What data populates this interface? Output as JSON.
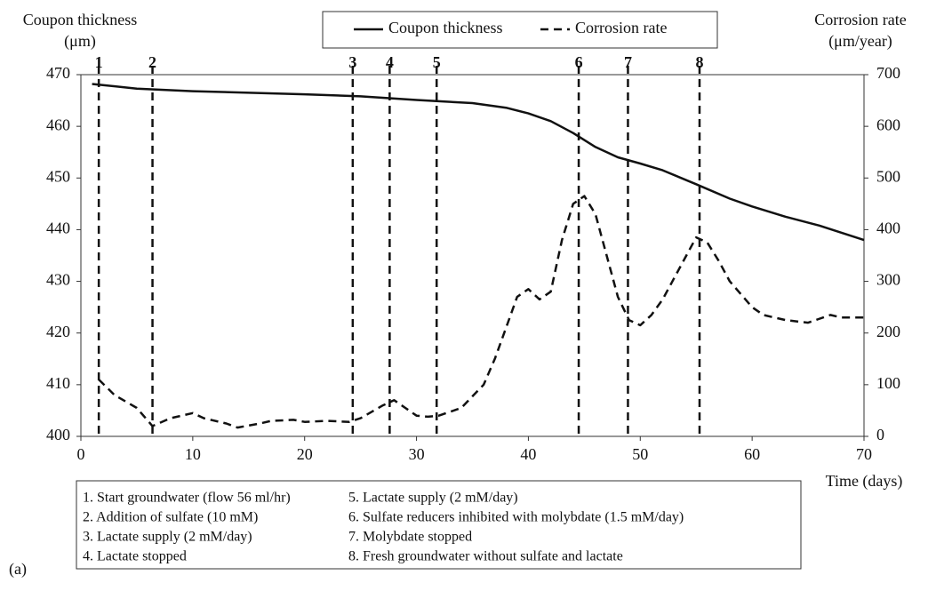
{
  "chart_data": {
    "type": "line",
    "left_axis_title": [
      "Coupon thickness",
      "(μm)"
    ],
    "right_axis_title": [
      "Corrosion rate",
      "(μm/year)"
    ],
    "xlabel": "Time (days)",
    "xlim": [
      0,
      70
    ],
    "xticks": [
      0,
      10,
      20,
      30,
      40,
      50,
      60,
      70
    ],
    "ylim": [
      400,
      470
    ],
    "yticks": [
      400,
      410,
      420,
      430,
      440,
      450,
      460,
      470
    ],
    "y2lim": [
      0,
      700
    ],
    "y2ticks": [
      0,
      100,
      200,
      300,
      400,
      500,
      600,
      700
    ],
    "grid": false,
    "series": [
      {
        "name": "Coupon thickness",
        "color": "#111111",
        "style": "solid",
        "x": [
          1,
          5,
          10,
          20,
          25,
          30,
          35,
          38,
          40,
          42,
          44,
          46,
          48,
          50,
          52,
          55,
          58,
          60,
          63,
          66,
          70
        ],
        "values": [
          468.2,
          467.3,
          466.8,
          466.2,
          465.8,
          465.1,
          464.5,
          463.6,
          462.5,
          461,
          458.7,
          456,
          454,
          452.8,
          451.5,
          448.8,
          446,
          444.5,
          442.5,
          440.8,
          438
        ]
      },
      {
        "name": "Corrosion rate",
        "color": "#111111",
        "style": "dashed",
        "axis": "y2",
        "x": [
          1.6,
          3,
          5,
          6.4,
          8,
          10,
          11,
          13,
          14,
          16,
          17,
          19,
          20,
          22,
          24,
          25,
          27,
          28,
          29,
          30,
          31,
          32,
          34,
          36,
          37,
          38,
          39,
          40,
          41,
          42,
          43,
          44,
          45,
          46,
          47,
          48,
          49,
          50,
          51,
          52,
          53,
          54,
          55,
          56,
          57,
          58,
          59,
          60,
          61,
          63,
          65,
          67,
          68,
          70
        ],
        "values": [
          110,
          80,
          55,
          20,
          35,
          45,
          35,
          25,
          17,
          25,
          30,
          32,
          28,
          30,
          28,
          35,
          60,
          70,
          55,
          40,
          38,
          40,
          55,
          100,
          150,
          210,
          270,
          285,
          265,
          280,
          380,
          450,
          465,
          430,
          350,
          270,
          225,
          215,
          235,
          265,
          305,
          345,
          385,
          375,
          340,
          300,
          275,
          250,
          235,
          225,
          220,
          235,
          230,
          230
        ]
      }
    ],
    "events": [
      {
        "label": "1",
        "x": 1.6
      },
      {
        "label": "2",
        "x": 6.4
      },
      {
        "label": "3",
        "x": 24.3
      },
      {
        "label": "4",
        "x": 27.6
      },
      {
        "label": "5",
        "x": 31.8
      },
      {
        "label": "6",
        "x": 44.5
      },
      {
        "label": "7",
        "x": 48.9
      },
      {
        "label": "8",
        "x": 55.3
      }
    ],
    "notes": [
      "1. Start groundwater (flow 56 ml/hr)",
      "2. Addition of sulfate (10 mM)",
      "3. Lactate supply (2 mM/day)",
      "4. Lactate stopped",
      "5. Lactate supply (2 mM/day)",
      "6. Sulfate reducers inhibited with molybdate (1.5 mM/day)",
      "7. Molybdate stopped",
      "8. Fresh groundwater without sulfate and lactate"
    ],
    "panel_label": "(a)"
  }
}
